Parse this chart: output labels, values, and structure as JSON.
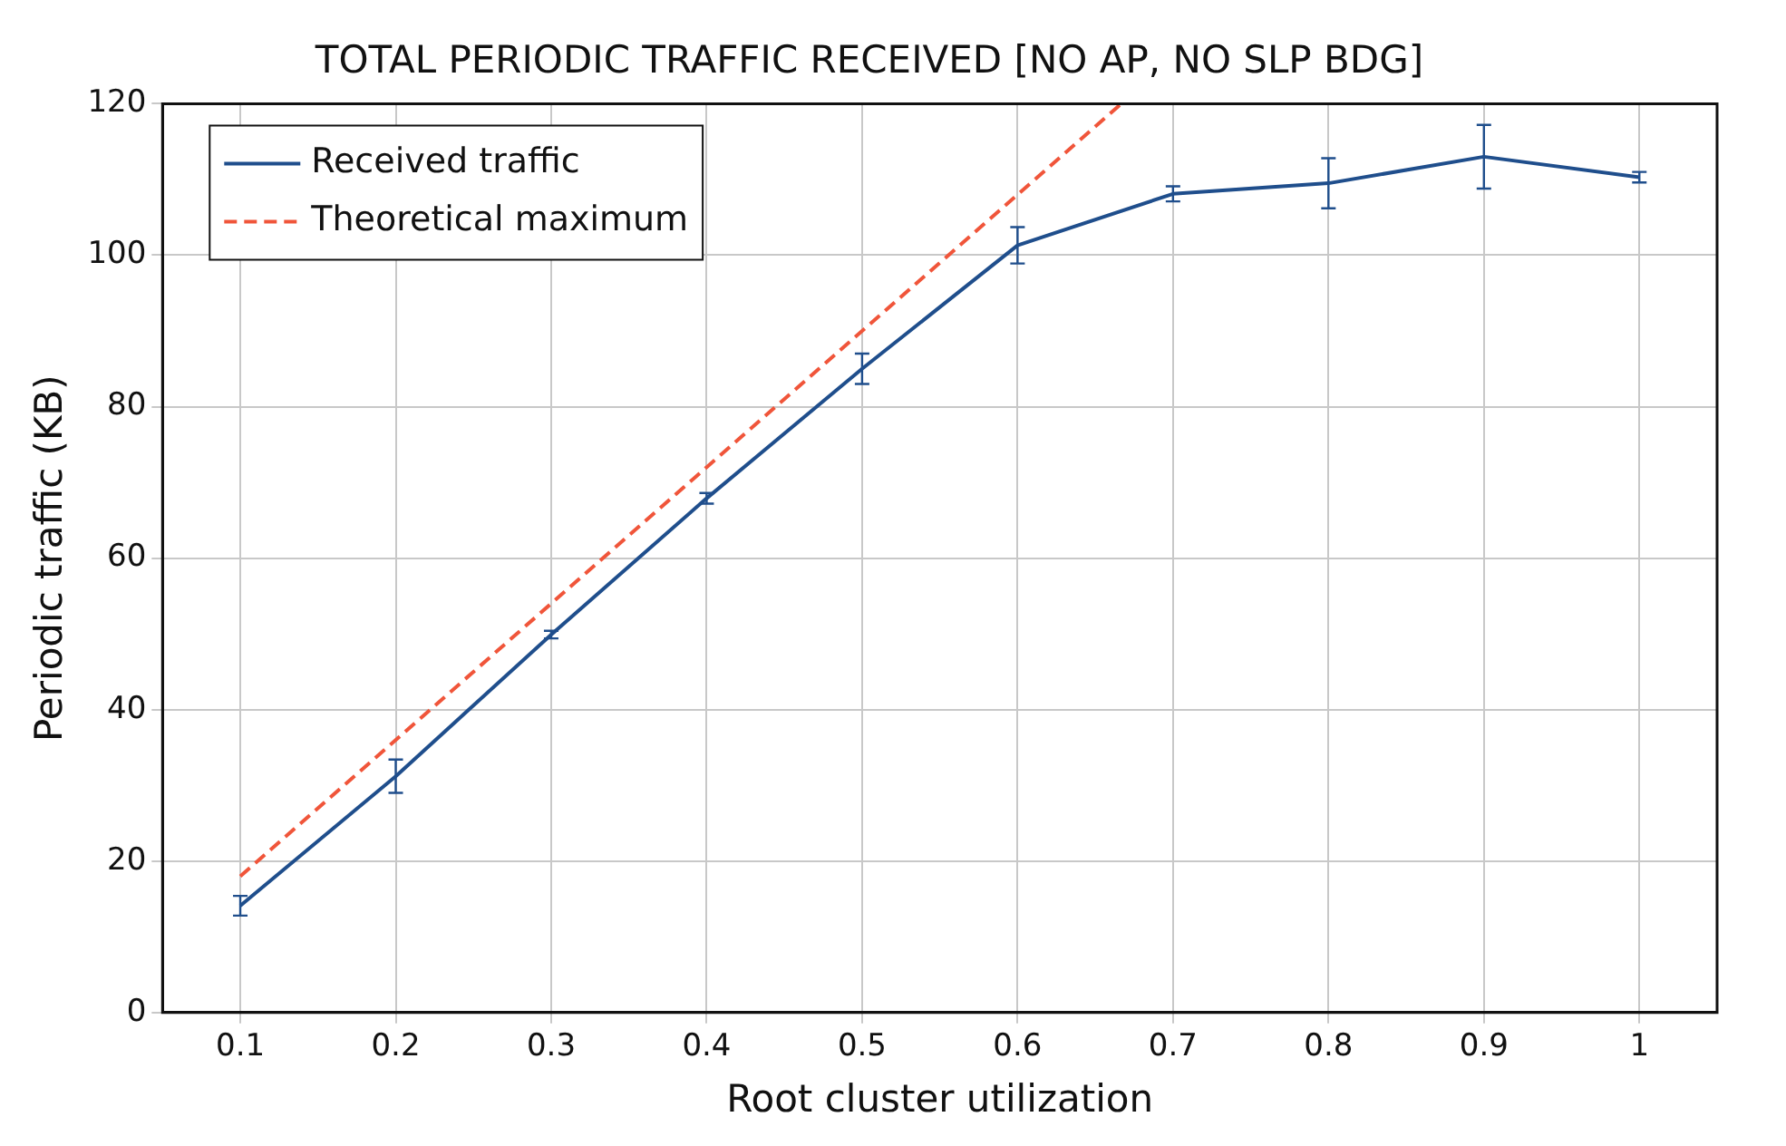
{
  "chart_data": {
    "type": "line",
    "title": "TOTAL PERIODIC TRAFFIC RECEIVED [NO AP, NO SLP BDG]",
    "xlabel": "Root cluster utilization",
    "ylabel": "Periodic traffic (KB)",
    "x": [
      0.1,
      0.2,
      0.3,
      0.4,
      0.5,
      0.6,
      0.7,
      0.8,
      0.9,
      1
    ],
    "series": [
      {
        "name": "Received traffic",
        "color": "#1f4e8c",
        "line_style": "solid",
        "values": [
          14.1,
          31.2,
          49.9,
          67.9,
          85.0,
          101.3,
          108.1,
          109.5,
          113.0,
          110.3
        ],
        "errors": [
          1.3,
          2.2,
          0.5,
          0.7,
          2.0,
          2.4,
          1.0,
          3.3,
          4.2,
          0.7
        ]
      },
      {
        "name": "Theoretical maximum",
        "color": "#f0553a",
        "line_style": "dashed",
        "x": [
          0.1,
          0.6667
        ],
        "values": [
          18,
          120
        ]
      }
    ],
    "xlim": [
      0.05,
      1.05
    ],
    "xticks": [
      {
        "value": 0.1,
        "label": "0.1"
      },
      {
        "value": 0.2,
        "label": "0.2"
      },
      {
        "value": 0.3,
        "label": "0.3"
      },
      {
        "value": 0.4,
        "label": "0.4"
      },
      {
        "value": 0.5,
        "label": "0.5"
      },
      {
        "value": 0.6,
        "label": "0.6"
      },
      {
        "value": 0.7,
        "label": "0.7"
      },
      {
        "value": 0.8,
        "label": "0.8"
      },
      {
        "value": 0.9,
        "label": "0.9"
      },
      1
    ],
    "ylim": [
      0,
      120
    ],
    "yticks": [
      0,
      20,
      40,
      60,
      80,
      100,
      120
    ],
    "grid": true,
    "legend": "top left",
    "marker": "none"
  }
}
